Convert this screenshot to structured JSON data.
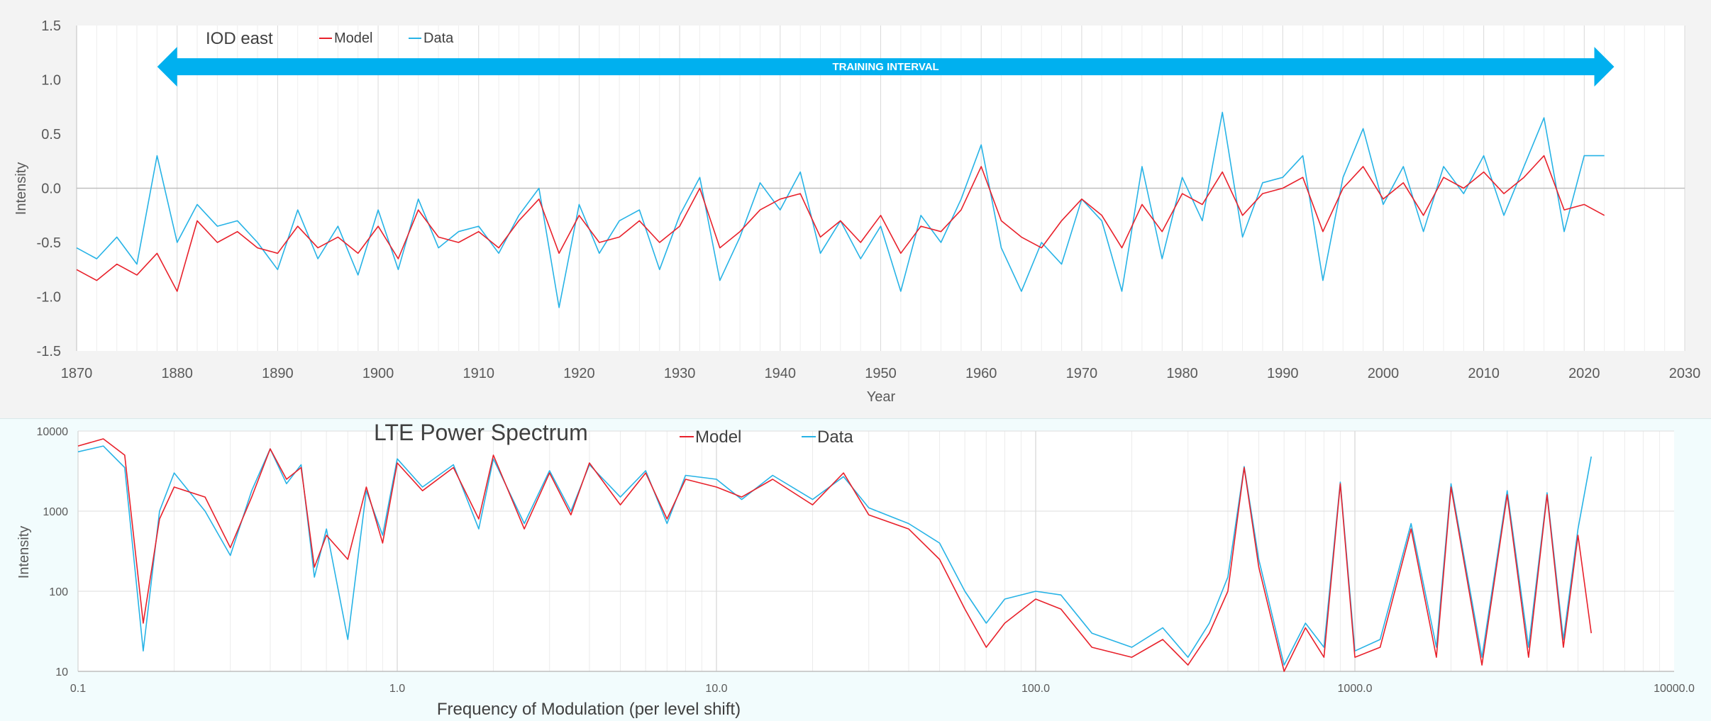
{
  "charts": {
    "top": {
      "title": "IOD east",
      "xlabel": "Year",
      "ylabel": "Intensity",
      "legend": [
        "Model",
        "Data"
      ],
      "annotation": "TRAINING INTERVAL",
      "colors": {
        "model": "#e8212b",
        "data": "#27b3e6",
        "arrow": "#00b0ef"
      }
    },
    "bottom": {
      "title": "LTE Power Spectrum",
      "xlabel": "Frequency of Modulation (per level shift)",
      "ylabel": "Intensity",
      "legend": [
        "Model",
        "Data"
      ],
      "colors": {
        "model": "#e8212b",
        "data": "#27b3e6"
      }
    }
  },
  "chart_data": [
    {
      "type": "line",
      "title": "IOD east",
      "xlabel": "Year",
      "ylabel": "Intensity",
      "xlim": [
        1870,
        2030
      ],
      "ylim": [
        -1.5,
        1.5
      ],
      "xticks": [
        "1870",
        "1880",
        "1890",
        "1900",
        "1910",
        "1920",
        "1930",
        "1940",
        "1950",
        "1960",
        "1970",
        "1980",
        "1990",
        "2000",
        "2010",
        "2020",
        "2030"
      ],
      "yticks": [
        "1.5",
        "1.0",
        "0.5",
        "0.0",
        "-0.5",
        "-1.0",
        "-1.5"
      ],
      "grid": "vertical",
      "legend": "top-left",
      "annotation": {
        "text": "TRAINING INTERVAL",
        "x_range": [
          1880,
          2021
        ],
        "y": 1.12
      },
      "series": [
        {
          "name": "Model",
          "x": [
            1870,
            1872,
            1874,
            1876,
            1878,
            1880,
            1882,
            1884,
            1886,
            1888,
            1890,
            1892,
            1894,
            1896,
            1898,
            1900,
            1902,
            1904,
            1906,
            1908,
            1910,
            1912,
            1914,
            1916,
            1918,
            1920,
            1922,
            1924,
            1926,
            1928,
            1930,
            1932,
            1934,
            1936,
            1938,
            1940,
            1942,
            1944,
            1946,
            1948,
            1950,
            1952,
            1954,
            1956,
            1958,
            1960,
            1962,
            1964,
            1966,
            1968,
            1970,
            1972,
            1974,
            1976,
            1978,
            1980,
            1982,
            1984,
            1986,
            1988,
            1990,
            1992,
            1994,
            1996,
            1998,
            2000,
            2002,
            2004,
            2006,
            2008,
            2010,
            2012,
            2014,
            2016,
            2018,
            2020,
            2022
          ],
          "y": [
            -0.75,
            -0.85,
            -0.7,
            -0.8,
            -0.6,
            -0.95,
            -0.3,
            -0.5,
            -0.4,
            -0.55,
            -0.6,
            -0.35,
            -0.55,
            -0.45,
            -0.6,
            -0.35,
            -0.65,
            -0.2,
            -0.45,
            -0.5,
            -0.4,
            -0.55,
            -0.3,
            -0.1,
            -0.6,
            -0.25,
            -0.5,
            -0.45,
            -0.3,
            -0.5,
            -0.35,
            0.0,
            -0.55,
            -0.4,
            -0.2,
            -0.1,
            -0.05,
            -0.45,
            -0.3,
            -0.5,
            -0.25,
            -0.6,
            -0.35,
            -0.4,
            -0.2,
            0.2,
            -0.3,
            -0.45,
            -0.55,
            -0.3,
            -0.1,
            -0.25,
            -0.55,
            -0.15,
            -0.4,
            -0.05,
            -0.15,
            0.15,
            -0.25,
            -0.05,
            0.0,
            0.1,
            -0.4,
            0.0,
            0.2,
            -0.1,
            0.05,
            -0.25,
            0.1,
            0.0,
            0.15,
            -0.05,
            0.1,
            0.3,
            -0.2,
            -0.15,
            -0.25
          ]
        },
        {
          "name": "Data",
          "x": [
            1870,
            1872,
            1874,
            1876,
            1878,
            1880,
            1882,
            1884,
            1886,
            1888,
            1890,
            1892,
            1894,
            1896,
            1898,
            1900,
            1902,
            1904,
            1906,
            1908,
            1910,
            1912,
            1914,
            1916,
            1918,
            1920,
            1922,
            1924,
            1926,
            1928,
            1930,
            1932,
            1934,
            1936,
            1938,
            1940,
            1942,
            1944,
            1946,
            1948,
            1950,
            1952,
            1954,
            1956,
            1958,
            1960,
            1962,
            1964,
            1966,
            1968,
            1970,
            1972,
            1974,
            1976,
            1978,
            1980,
            1982,
            1984,
            1986,
            1988,
            1990,
            1992,
            1994,
            1996,
            1998,
            2000,
            2002,
            2004,
            2006,
            2008,
            2010,
            2012,
            2014,
            2016,
            2018,
            2020,
            2022
          ],
          "y": [
            -0.55,
            -0.65,
            -0.45,
            -0.7,
            0.3,
            -0.5,
            -0.15,
            -0.35,
            -0.3,
            -0.5,
            -0.75,
            -0.2,
            -0.65,
            -0.35,
            -0.8,
            -0.2,
            -0.75,
            -0.1,
            -0.55,
            -0.4,
            -0.35,
            -0.6,
            -0.25,
            0.0,
            -1.1,
            -0.15,
            -0.6,
            -0.3,
            -0.2,
            -0.75,
            -0.25,
            0.1,
            -0.85,
            -0.45,
            0.05,
            -0.2,
            0.15,
            -0.6,
            -0.3,
            -0.65,
            -0.35,
            -0.95,
            -0.25,
            -0.5,
            -0.1,
            0.4,
            -0.55,
            -0.95,
            -0.5,
            -0.7,
            -0.1,
            -0.3,
            -0.95,
            0.2,
            -0.65,
            0.1,
            -0.3,
            0.7,
            -0.45,
            0.05,
            0.1,
            0.3,
            -0.85,
            0.1,
            0.55,
            -0.15,
            0.2,
            -0.4,
            0.2,
            -0.05,
            0.3,
            -0.25,
            0.2,
            0.65,
            -0.4,
            0.3,
            0.3
          ]
        }
      ]
    },
    {
      "type": "line",
      "title": "LTE Power Spectrum",
      "xlabel": "Frequency of Modulation (per level shift)",
      "ylabel": "Intensity",
      "xscale": "log",
      "yscale": "log",
      "xlim": [
        0.1,
        10000.0
      ],
      "ylim": [
        10,
        10000
      ],
      "xticks": [
        "0.1",
        "1.0",
        "10.0",
        "100.0",
        "1000.0",
        "10000.0"
      ],
      "yticks": [
        "10000",
        "1000",
        "100",
        "10"
      ],
      "grid": "log",
      "legend": "top-center",
      "series": [
        {
          "name": "Model",
          "x": [
            0.1,
            0.12,
            0.14,
            0.16,
            0.18,
            0.2,
            0.25,
            0.3,
            0.35,
            0.4,
            0.45,
            0.5,
            0.55,
            0.6,
            0.7,
            0.8,
            0.9,
            1.0,
            1.2,
            1.5,
            1.8,
            2.0,
            2.5,
            3.0,
            3.5,
            4.0,
            5.0,
            6.0,
            7.0,
            8.0,
            10.0,
            12.0,
            15.0,
            20.0,
            25.0,
            30.0,
            40.0,
            50.0,
            60.0,
            70.0,
            80.0,
            100.0,
            120.0,
            150.0,
            200.0,
            250.0,
            300.0,
            350.0,
            400.0,
            450.0,
            500.0,
            600.0,
            700.0,
            800.0,
            900.0,
            1000.0,
            1200.0,
            1500.0,
            1800.0,
            2000.0,
            2500.0,
            3000.0,
            3500.0,
            4000.0,
            4500.0,
            5000.0,
            5500.0
          ],
          "y": [
            6500,
            8000,
            5000,
            40,
            800,
            2000,
            1500,
            350,
            1500,
            6000,
            2500,
            3500,
            200,
            500,
            250,
            2000,
            400,
            4000,
            1800,
            3500,
            800,
            5000,
            600,
            3000,
            900,
            4000,
            1200,
            3000,
            800,
            2500,
            2000,
            1500,
            2500,
            1200,
            3000,
            900,
            600,
            250,
            60,
            20,
            40,
            80,
            60,
            20,
            15,
            25,
            12,
            30,
            100,
            3500,
            200,
            10,
            35,
            15,
            2200,
            15,
            20,
            600,
            15,
            2000,
            12,
            1600,
            15,
            1600,
            20,
            500,
            30
          ]
        },
        {
          "name": "Data",
          "x": [
            0.1,
            0.12,
            0.14,
            0.16,
            0.18,
            0.2,
            0.25,
            0.3,
            0.35,
            0.4,
            0.45,
            0.5,
            0.55,
            0.6,
            0.7,
            0.8,
            0.9,
            1.0,
            1.2,
            1.5,
            1.8,
            2.0,
            2.5,
            3.0,
            3.5,
            4.0,
            5.0,
            6.0,
            7.0,
            8.0,
            10.0,
            12.0,
            15.0,
            20.0,
            25.0,
            30.0,
            40.0,
            50.0,
            60.0,
            70.0,
            80.0,
            100.0,
            120.0,
            150.0,
            200.0,
            250.0,
            300.0,
            350.0,
            400.0,
            450.0,
            500.0,
            600.0,
            700.0,
            800.0,
            900.0,
            1000.0,
            1200.0,
            1500.0,
            1800.0,
            2000.0,
            2500.0,
            3000.0,
            3500.0,
            4000.0,
            4500.0,
            5000.0,
            5500.0
          ],
          "y": [
            5500,
            6500,
            3500,
            18,
            1000,
            3000,
            1000,
            280,
            1800,
            6000,
            2200,
            3800,
            150,
            600,
            25,
            1800,
            500,
            4500,
            2000,
            3800,
            600,
            4500,
            700,
            3200,
            1000,
            3800,
            1500,
            3200,
            700,
            2800,
            2500,
            1400,
            2800,
            1400,
            2700,
            1100,
            700,
            400,
            100,
            40,
            80,
            100,
            90,
            30,
            20,
            35,
            15,
            40,
            150,
            3600,
            250,
            12,
            40,
            20,
            2300,
            18,
            25,
            700,
            20,
            2200,
            15,
            1800,
            20,
            1700,
            25,
            600,
            4800
          ]
        }
      ]
    }
  ]
}
